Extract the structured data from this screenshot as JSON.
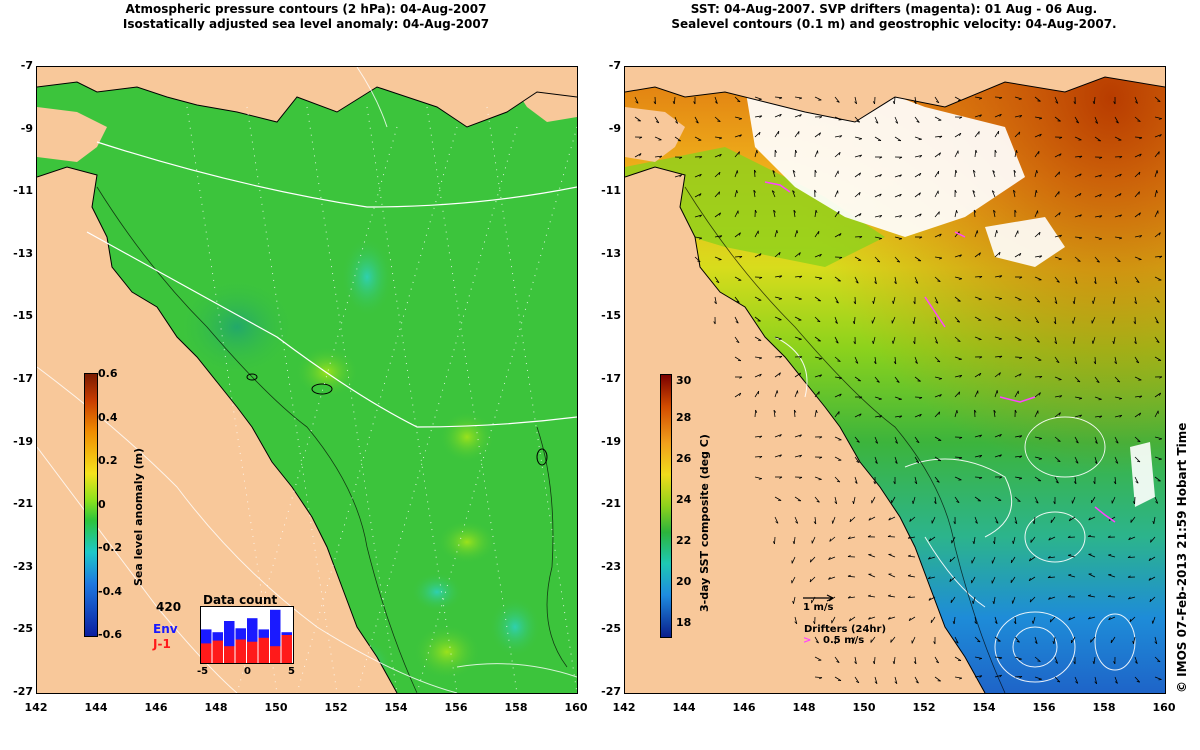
{
  "left_panel": {
    "title_line1": "Atmospheric pressure contours (2 hPa): 04-Aug-2007",
    "title_line2": "Isostatically adjusted sea level anomaly: 04-Aug-2007",
    "colorbar": {
      "label": "Sea level anomaly (m)",
      "ticks": [
        "0.6",
        "0.4",
        "0.2",
        "0",
        "-0.2",
        "-0.4",
        "-0.6"
      ]
    },
    "inset": {
      "title": "Data count",
      "count": "420",
      "env_label": "Env",
      "j1_label": "J-1",
      "x_ticks": [
        "-5",
        "0",
        "5"
      ],
      "env_color": "#1a1aff",
      "j1_color": "#ff1a1a",
      "env_bars": [
        0.6,
        0.55,
        0.75,
        0.62,
        0.8,
        0.6,
        0.95,
        0.55
      ],
      "j1_bars": [
        0.35,
        0.4,
        0.3,
        0.42,
        0.38,
        0.45,
        0.3,
        0.5
      ]
    }
  },
  "right_panel": {
    "title_line1": "SST: 04-Aug-2007. SVP drifters (magenta): 01 Aug - 06 Aug.",
    "title_line2": "Sealevel contours (0.1 m) and geostrophic velocity: 04-Aug-2007.",
    "colorbar": {
      "label": "3-day SST composite (deg C)",
      "ticks": [
        "30",
        "28",
        "26",
        "24",
        "22",
        "20",
        "18"
      ]
    },
    "legend": {
      "velocity": "1 m/s",
      "drifters": "Drifters (24hr)",
      "drifter_speed": "0.5 m/s",
      "drifter_color": "#ff44ff"
    }
  },
  "axes": {
    "lat_ticks": [
      "-7",
      "-9",
      "-11",
      "-13",
      "-15",
      "-17",
      "-19",
      "-21",
      "-23",
      "-25",
      "-27"
    ],
    "lon_ticks": [
      "142",
      "144",
      "146",
      "148",
      "150",
      "152",
      "154",
      "156",
      "158",
      "160"
    ]
  },
  "credit": "© IMOS 07-Feb-2013 21:59 Hobart Time",
  "colors": {
    "land": "#f8c89a",
    "sla_sea": "#3cc43c",
    "sst_warm": "#e07a10",
    "sst_cool": "#1e78d8"
  }
}
